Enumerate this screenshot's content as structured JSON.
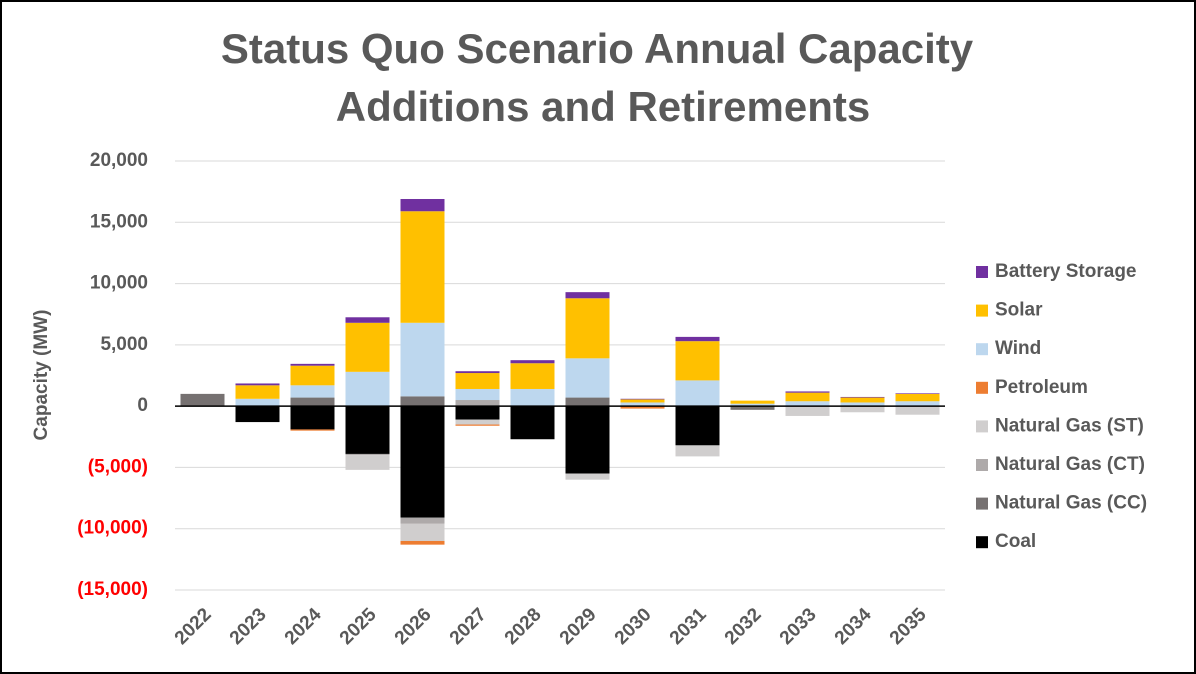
{
  "chart_data": {
    "type": "stacked-bar",
    "title": [
      "Status Quo Scenario Annual Capacity",
      "Additions and Retirements"
    ],
    "y_label": "Capacity (MW)",
    "categories": [
      "2022",
      "2023",
      "2024",
      "2025",
      "2026",
      "2027",
      "2028",
      "2029",
      "2030",
      "2031",
      "2032",
      "2033",
      "2034",
      "2035"
    ],
    "series": [
      {
        "name": "Coal",
        "color": "#000000",
        "values": [
          0,
          -1300,
          -1900,
          -3900,
          -9100,
          -1100,
          -2700,
          -5500,
          0,
          -3200,
          0,
          0,
          0,
          0
        ]
      },
      {
        "name": "Natural Gas (CC)",
        "color": "#767171",
        "values": [
          1000,
          0,
          700,
          0,
          800,
          0,
          0,
          700,
          0,
          0,
          -300,
          0,
          0,
          0
        ]
      },
      {
        "name": "Natural Gas (CT)",
        "color": "#aeaaaa",
        "values": [
          0,
          0,
          0,
          -100,
          -500,
          500,
          0,
          0,
          0,
          0,
          0,
          0,
          0,
          0
        ]
      },
      {
        "name": "Natural Gas (ST)",
        "color": "#d0cece",
        "values": [
          0,
          0,
          0,
          -1200,
          -1400,
          -400,
          0,
          -500,
          0,
          -900,
          0,
          -800,
          -500,
          -700
        ]
      },
      {
        "name": "Petroleum",
        "color": "#ed7d31",
        "values": [
          0,
          0,
          -100,
          0,
          -300,
          -100,
          0,
          0,
          -200,
          0,
          0,
          0,
          0,
          0
        ]
      },
      {
        "name": "Wind",
        "color": "#bdd7ee",
        "values": [
          0,
          600,
          1000,
          2800,
          6000,
          900,
          1400,
          3200,
          300,
          2100,
          200,
          400,
          300,
          400
        ]
      },
      {
        "name": "Solar",
        "color": "#ffc000",
        "values": [
          0,
          1100,
          1600,
          4000,
          9100,
          1300,
          2100,
          4900,
          250,
          3200,
          250,
          700,
          400,
          600
        ]
      },
      {
        "name": "Battery Storage",
        "color": "#7030a0",
        "values": [
          0,
          150,
          150,
          450,
          1000,
          150,
          250,
          500,
          50,
          350,
          0,
          100,
          50,
          50
        ]
      }
    ],
    "ylim": [
      -15000,
      20000
    ],
    "yticks": [
      {
        "value": -15000,
        "label": "(15,000)"
      },
      {
        "value": -10000,
        "label": "(10,000)"
      },
      {
        "value": -5000,
        "label": "(5,000)"
      },
      0,
      {
        "value": 5000,
        "label": "5,000"
      },
      {
        "value": 10000,
        "label": "10,000"
      },
      {
        "value": 15000,
        "label": "15,000"
      },
      {
        "value": 20000,
        "label": "20,000"
      }
    ],
    "negative_tick_color": "#ff0000",
    "grid": true,
    "legend": "right"
  }
}
